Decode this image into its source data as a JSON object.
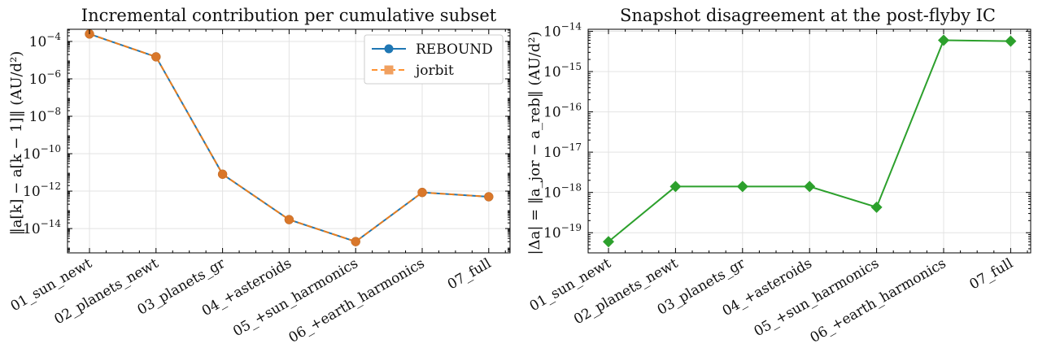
{
  "colors": {
    "rebound": "#1f77b4",
    "jorbit": "#ff7f0e",
    "disagreement": "#2ca02c",
    "grid": "#e3e3e3"
  },
  "chart_data": [
    {
      "type": "line",
      "title": "Incremental contribution per cumulative subset",
      "ylabel": "‖a[k] − a[k − 1]‖ (AU/d²)",
      "yscale": "log",
      "ylim_exp": [
        -15.3,
        -3.35
      ],
      "y_tick_exps": [
        -4,
        -6,
        -8,
        -10,
        -12,
        -14
      ],
      "grid": true,
      "legend": "top-right",
      "categories": [
        "01_sun_newt",
        "02_planets_newt",
        "03_planets_gr",
        "04_+asteroids",
        "05_+sun_harmonics",
        "06_+earth_harmonics",
        "07_full"
      ],
      "series": [
        {
          "name": "REBOUND",
          "marker": "circle",
          "dash": "solid",
          "color_key": "rebound",
          "values": [
            0.00025,
            1.5e-05,
            8e-12,
            3e-14,
            2e-15,
            8.5e-13,
            5e-13
          ]
        },
        {
          "name": "jorbit",
          "marker": "square",
          "dash": "dashed",
          "color_key": "jorbit",
          "values": [
            0.00025,
            1.5e-05,
            8e-12,
            3e-14,
            2e-15,
            8.5e-13,
            5e-13
          ]
        }
      ]
    },
    {
      "type": "line",
      "title": "Snapshot disagreement at the post-flyby IC",
      "ylabel": "|Δa| = ‖a_jor − a_reb‖ (AU/d²)",
      "yscale": "log",
      "ylim_exp": [
        -19.5,
        -13.95
      ],
      "y_tick_exps": [
        -14,
        -15,
        -16,
        -17,
        -18,
        -19
      ],
      "grid": true,
      "categories": [
        "01_sun_newt",
        "02_planets_newt",
        "03_planets_gr",
        "04_+asteroids",
        "05_+sun_harmonics",
        "06_+earth_harmonics",
        "07_full"
      ],
      "series": [
        {
          "marker": "diamond",
          "dash": "solid",
          "color_key": "disagreement",
          "values": [
            6e-20,
            1.4e-18,
            1.4e-18,
            1.4e-18,
            4.3e-19,
            6e-15,
            5.7e-15
          ]
        }
      ]
    }
  ]
}
